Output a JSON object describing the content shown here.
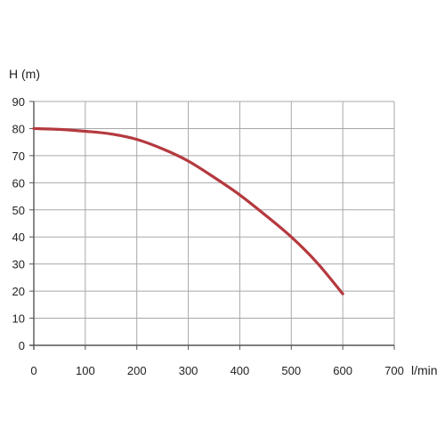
{
  "chart_data": {
    "type": "line",
    "ylabel": "H (m)",
    "xlabel": "l/min",
    "xlim": [
      0,
      700
    ],
    "ylim": [
      0,
      90
    ],
    "x_ticks": [
      0,
      100,
      200,
      300,
      400,
      500,
      600,
      700
    ],
    "y_ticks": [
      0,
      10,
      20,
      30,
      40,
      50,
      60,
      70,
      80,
      90
    ],
    "x_tick_labels": [
      "0",
      "100",
      "200",
      "300",
      "400",
      "500",
      "600",
      "700"
    ],
    "y_tick_labels": [
      "0",
      "10",
      "20",
      "30",
      "40",
      "50",
      "60",
      "70",
      "80",
      "90"
    ],
    "grid": true,
    "legend": "none",
    "series": [
      {
        "color": "#b5393f",
        "x": [
          0,
          50,
          100,
          150,
          200,
          250,
          300,
          350,
          400,
          450,
          500,
          550,
          600
        ],
        "y": [
          80,
          79.7,
          79,
          78,
          76,
          72.5,
          68,
          62,
          55.5,
          48,
          40,
          30.5,
          19
        ]
      }
    ],
    "colors": {
      "grid": "#a8a8a8",
      "axis": "#555555"
    }
  }
}
